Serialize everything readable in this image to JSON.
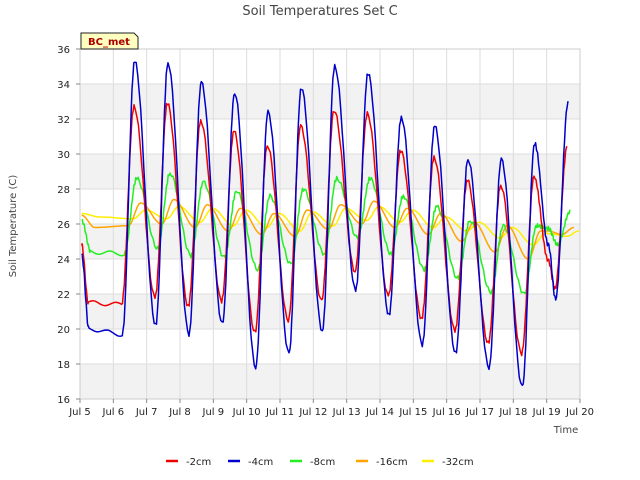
{
  "chart_data": {
    "type": "line",
    "title": "Soil Temperatures Set C",
    "xlabel": "Time",
    "ylabel": "Soil Temperature (C)",
    "badge": "BC_met",
    "xlim": [
      5,
      20
    ],
    "ylim": [
      16,
      36
    ],
    "yticks": [
      16,
      18,
      20,
      22,
      24,
      26,
      28,
      30,
      32,
      34,
      36
    ],
    "xticks": [
      5,
      6,
      7,
      8,
      9,
      10,
      11,
      12,
      13,
      14,
      15,
      16,
      17,
      18,
      19,
      20
    ],
    "xtick_labels": [
      "Jul 5",
      "Jul 6",
      "Jul 7",
      "Jul 8",
      "Jul 9",
      "Jul 10",
      "Jul 11",
      "Jul 12",
      "Jul 13",
      "Jul 14",
      "Jul 15",
      "Jul 16",
      "Jul 17",
      "Jul 18",
      "Jul 19",
      "Jul 20"
    ],
    "grid": true,
    "legend_position": "bottom",
    "day_extremes": [
      {
        "day": 5,
        "min": [
          21.5,
          20.0,
          24.4,
          25.8,
          26.4
        ],
        "max": [
          24.8,
          24.2,
          26.2,
          26.5,
          26.6
        ]
      },
      {
        "day": 6,
        "min": [
          21.4,
          19.7,
          24.3,
          25.9,
          26.3
        ],
        "max": [
          32.7,
          35.3,
          28.6,
          27.2,
          26.8
        ]
      },
      {
        "day": 7,
        "min": [
          21.8,
          20.2,
          24.6,
          26.0,
          26.3
        ],
        "max": [
          32.9,
          35.2,
          28.9,
          27.4,
          27.0
        ]
      },
      {
        "day": 8,
        "min": [
          21.3,
          19.7,
          24.2,
          25.8,
          26.1
        ],
        "max": [
          31.9,
          34.1,
          28.4,
          27.1,
          26.9
        ]
      },
      {
        "day": 9,
        "min": [
          21.6,
          20.3,
          24.1,
          25.6,
          25.9
        ],
        "max": [
          31.3,
          33.5,
          27.9,
          26.9,
          26.8
        ]
      },
      {
        "day": 10,
        "min": [
          19.8,
          17.8,
          23.4,
          25.4,
          25.8
        ],
        "max": [
          30.5,
          32.4,
          27.6,
          26.6,
          26.6
        ]
      },
      {
        "day": 11,
        "min": [
          20.5,
          18.6,
          23.7,
          25.3,
          25.6
        ],
        "max": [
          31.6,
          33.8,
          28.0,
          26.8,
          26.7
        ]
      },
      {
        "day": 12,
        "min": [
          21.6,
          19.9,
          24.3,
          25.7,
          25.9
        ],
        "max": [
          32.5,
          35.0,
          28.6,
          27.1,
          26.9
        ]
      },
      {
        "day": 13,
        "min": [
          23.3,
          22.2,
          25.2,
          26.0,
          26.2
        ],
        "max": [
          32.3,
          34.6,
          28.6,
          27.3,
          27.0
        ]
      },
      {
        "day": 14,
        "min": [
          21.9,
          20.8,
          24.3,
          25.8,
          26.1
        ],
        "max": [
          30.2,
          32.1,
          27.6,
          26.9,
          26.8
        ]
      },
      {
        "day": 15,
        "min": [
          20.6,
          19.1,
          23.4,
          25.4,
          25.8
        ],
        "max": [
          29.8,
          31.6,
          27.0,
          26.6,
          26.4
        ]
      },
      {
        "day": 16,
        "min": [
          19.9,
          18.6,
          22.9,
          25.0,
          25.6
        ],
        "max": [
          28.5,
          29.7,
          26.2,
          26.1,
          26.1
        ]
      },
      {
        "day": 17,
        "min": [
          19.2,
          17.8,
          22.1,
          24.4,
          25.2
        ],
        "max": [
          28.2,
          29.7,
          25.9,
          25.9,
          25.8
        ]
      },
      {
        "day": 18,
        "min": [
          18.6,
          16.7,
          22.0,
          24.0,
          24.8
        ],
        "max": [
          28.7,
          30.6,
          25.9,
          25.6,
          25.5
        ]
      },
      {
        "day": 19,
        "min": [
          22.3,
          21.7,
          24.8,
          25.4,
          25.3
        ],
        "max": [
          30.5,
          32.9,
          26.7,
          25.8,
          25.6
        ]
      }
    ],
    "series": [
      {
        "name": "-2cm",
        "color": "#ee0000"
      },
      {
        "name": "-4cm",
        "color": "#0000cc"
      },
      {
        "name": "-8cm",
        "color": "#22ee22"
      },
      {
        "name": "-16cm",
        "color": "#ffa500"
      },
      {
        "name": "-32cm",
        "color": "#ffee00"
      }
    ]
  }
}
